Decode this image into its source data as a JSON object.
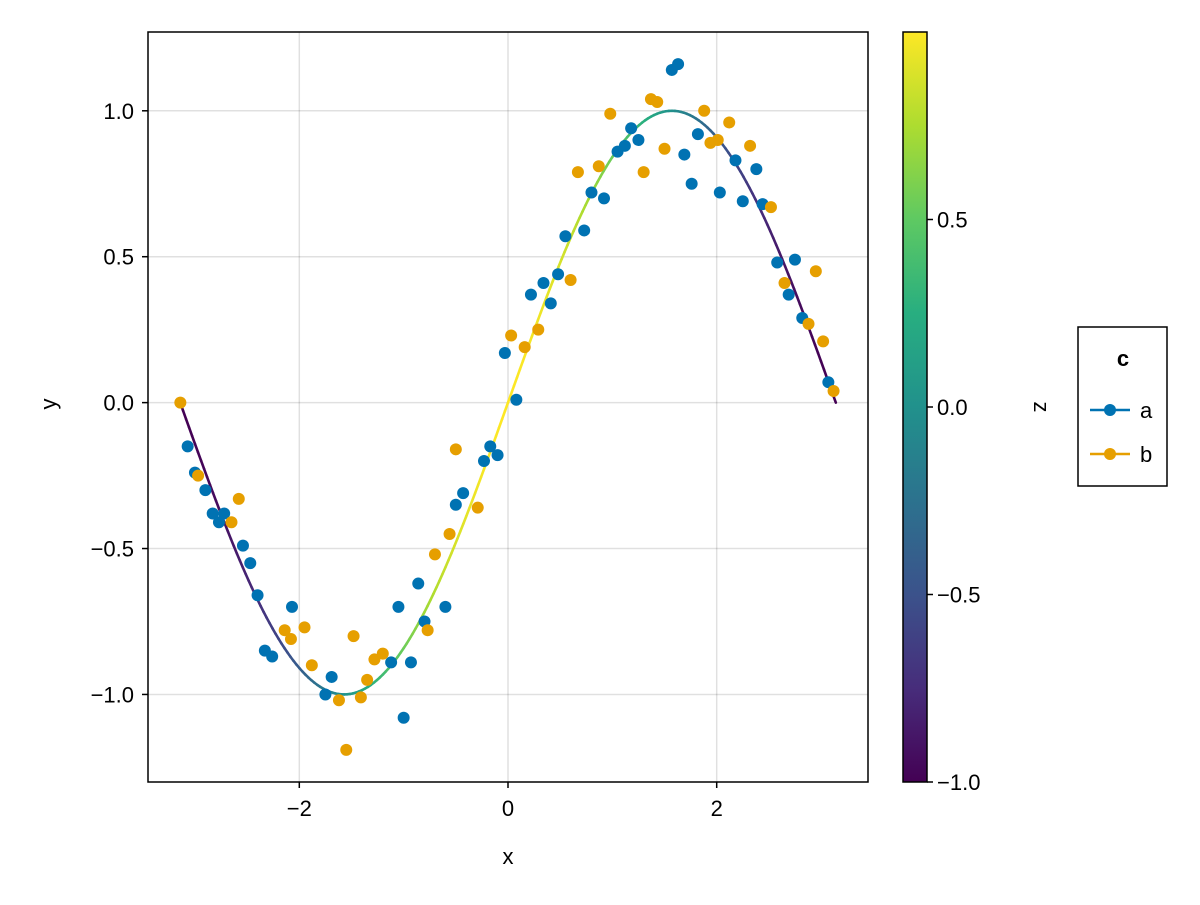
{
  "chart_data": {
    "type": "scatter",
    "title": "",
    "xlabel": "x",
    "ylabel": "y",
    "xlim": [
      -3.45,
      3.45
    ],
    "ylim": [
      -1.3,
      1.27
    ],
    "xticks": [
      -2,
      0,
      2
    ],
    "xtick_labels": [
      "−2",
      "0",
      "2"
    ],
    "yticks": [
      -1.0,
      -0.5,
      0.0,
      0.5,
      1.0
    ],
    "ytick_labels": [
      "−1.0",
      "−0.5",
      "0.0",
      "0.5",
      "1.0"
    ],
    "grid": true,
    "line": {
      "function": "sin",
      "x_range": [
        -3.14159,
        3.14159
      ],
      "color_value": "cos(x)",
      "colormap": "viridis"
    },
    "colorbar": {
      "label": "z",
      "range": [
        -1.0,
        1.0
      ],
      "ticks": [
        -1.0,
        -0.5,
        0.0,
        0.5
      ],
      "tick_labels": [
        "−1.0",
        "−0.5",
        "0.0",
        "0.5"
      ],
      "colormap": "viridis"
    },
    "legend": {
      "title": "c",
      "placement": "right",
      "entries": [
        {
          "label": "a",
          "color": "#0072B2"
        },
        {
          "label": "b",
          "color": "#E69F00"
        }
      ]
    },
    "series": [
      {
        "name": "a",
        "color": "#0072B2",
        "x": [
          -3.07,
          -3.0,
          -2.9,
          -2.83,
          -2.77,
          -2.72,
          -2.54,
          -2.47,
          -2.4,
          -2.33,
          -2.26,
          -2.07,
          -1.75,
          -1.69,
          -1.12,
          -1.05,
          -1.0,
          -0.93,
          -0.86,
          -0.8,
          -0.6,
          -0.5,
          -0.43,
          -0.23,
          -0.17,
          -0.1,
          -0.03,
          0.08,
          0.22,
          0.34,
          0.41,
          0.48,
          0.55,
          0.73,
          0.8,
          0.92,
          1.05,
          1.12,
          1.18,
          1.25,
          1.57,
          1.63,
          1.69,
          1.76,
          1.82,
          2.03,
          2.18,
          2.25,
          2.38,
          2.44,
          2.58,
          2.69,
          2.75,
          2.82,
          3.07
        ],
        "y": [
          -0.15,
          -0.24,
          -0.3,
          -0.38,
          -0.41,
          -0.38,
          -0.49,
          -0.55,
          -0.66,
          -0.85,
          -0.87,
          -0.7,
          -1.0,
          -0.94,
          -0.89,
          -0.7,
          -1.08,
          -0.89,
          -0.62,
          -0.75,
          -0.7,
          -0.35,
          -0.31,
          -0.2,
          -0.15,
          -0.18,
          0.17,
          0.01,
          0.37,
          0.41,
          0.34,
          0.44,
          0.57,
          0.59,
          0.72,
          0.7,
          0.86,
          0.88,
          0.94,
          0.9,
          1.14,
          1.16,
          0.85,
          0.75,
          0.92,
          0.72,
          0.83,
          0.69,
          0.8,
          0.68,
          0.48,
          0.37,
          0.49,
          0.29,
          0.07
        ]
      },
      {
        "name": "b",
        "color": "#E69F00",
        "x": [
          -3.14,
          -2.97,
          -2.65,
          -2.58,
          -2.14,
          -2.08,
          -1.95,
          -1.88,
          -1.62,
          -1.55,
          -1.48,
          -1.41,
          -1.35,
          -1.28,
          -1.2,
          -0.77,
          -0.7,
          -0.56,
          -0.5,
          -0.29,
          0.03,
          0.16,
          0.29,
          0.6,
          0.67,
          0.87,
          0.98,
          1.3,
          1.37,
          1.43,
          1.5,
          1.88,
          1.94,
          2.01,
          2.12,
          2.32,
          2.52,
          2.65,
          2.88,
          2.95,
          3.02,
          3.12
        ],
        "y": [
          0.0,
          -0.25,
          -0.41,
          -0.33,
          -0.78,
          -0.81,
          -0.77,
          -0.9,
          -1.02,
          -1.19,
          -0.8,
          -1.01,
          -0.95,
          -0.88,
          -0.86,
          -0.78,
          -0.52,
          -0.45,
          -0.16,
          -0.36,
          0.23,
          0.19,
          0.25,
          0.42,
          0.79,
          0.81,
          0.99,
          0.79,
          1.04,
          1.03,
          0.87,
          1.0,
          0.89,
          0.9,
          0.96,
          0.88,
          0.67,
          0.41,
          0.27,
          0.45,
          0.21,
          0.04
        ]
      }
    ]
  }
}
